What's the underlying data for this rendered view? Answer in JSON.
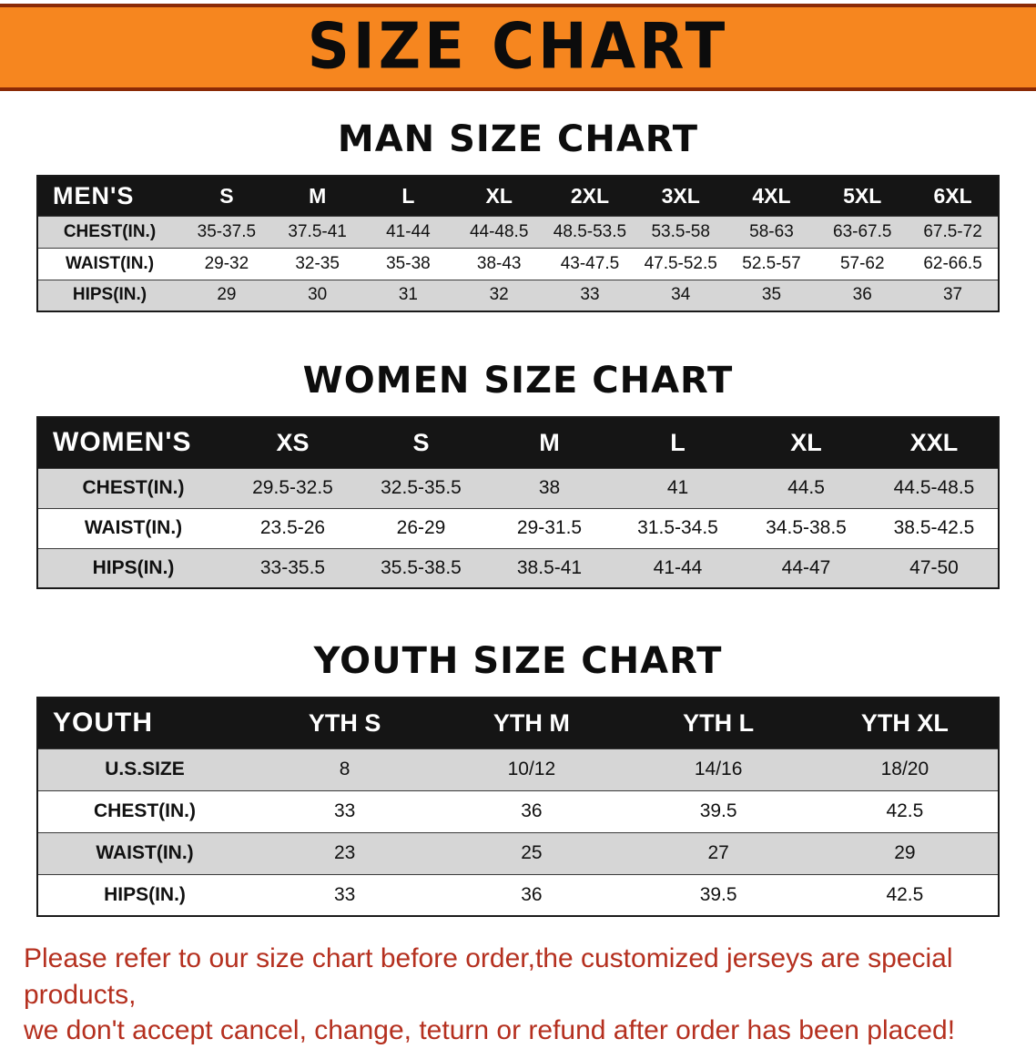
{
  "banner": {
    "title": "SIZE CHART"
  },
  "colors": {
    "banner_bg": "#f6861f",
    "banner_edge": "#8a2a06",
    "header_bg": "#151515",
    "shaded_row": "#d6d6d6",
    "note_text": "#b5301f"
  },
  "men": {
    "heading": "MAN SIZE CHART",
    "table": {
      "label": "MEN'S",
      "columns": [
        "S",
        "M",
        "L",
        "XL",
        "2XL",
        "3XL",
        "4XL",
        "5XL",
        "6XL"
      ],
      "rows": [
        {
          "label": "CHEST(IN.)",
          "values": [
            "35-37.5",
            "37.5-41",
            "41-44",
            "44-48.5",
            "48.5-53.5",
            "53.5-58",
            "58-63",
            "63-67.5",
            "67.5-72"
          ]
        },
        {
          "label": "WAIST(IN.)",
          "values": [
            "29-32",
            "32-35",
            "35-38",
            "38-43",
            "43-47.5",
            "47.5-52.5",
            "52.5-57",
            "57-62",
            "62-66.5"
          ]
        },
        {
          "label": "HIPS(IN.)",
          "values": [
            "29",
            "30",
            "31",
            "32",
            "33",
            "34",
            "35",
            "36",
            "37"
          ]
        }
      ]
    }
  },
  "women": {
    "heading": "WOMEN SIZE CHART",
    "table": {
      "label": "WOMEN'S",
      "columns": [
        "XS",
        "S",
        "M",
        "L",
        "XL",
        "XXL"
      ],
      "rows": [
        {
          "label": "CHEST(IN.)",
          "values": [
            "29.5-32.5",
            "32.5-35.5",
            "38",
            "41",
            "44.5",
            "44.5-48.5"
          ]
        },
        {
          "label": "WAIST(IN.)",
          "values": [
            "23.5-26",
            "26-29",
            "29-31.5",
            "31.5-34.5",
            "34.5-38.5",
            "38.5-42.5"
          ]
        },
        {
          "label": "HIPS(IN.)",
          "values": [
            "33-35.5",
            "35.5-38.5",
            "38.5-41",
            "41-44",
            "44-47",
            "47-50"
          ]
        }
      ]
    }
  },
  "youth": {
    "heading": "YOUTH SIZE CHART",
    "table": {
      "label": "YOUTH",
      "columns": [
        "YTH S",
        "YTH M",
        "YTH L",
        "YTH XL"
      ],
      "rows": [
        {
          "label": "U.S.SIZE",
          "values": [
            "8",
            "10/12",
            "14/16",
            "18/20"
          ]
        },
        {
          "label": "CHEST(IN.)",
          "values": [
            "33",
            "36",
            "39.5",
            "42.5"
          ]
        },
        {
          "label": "WAIST(IN.)",
          "values": [
            "23",
            "25",
            "27",
            "29"
          ]
        },
        {
          "label": "HIPS(IN.)",
          "values": [
            "33",
            "36",
            "39.5",
            "42.5"
          ]
        }
      ]
    }
  },
  "note": {
    "line1": "Please refer to our size chart before order,the customized jerseys are special products,",
    "line2": "we don't accept cancel, change, teturn or refund after order has been placed!"
  }
}
